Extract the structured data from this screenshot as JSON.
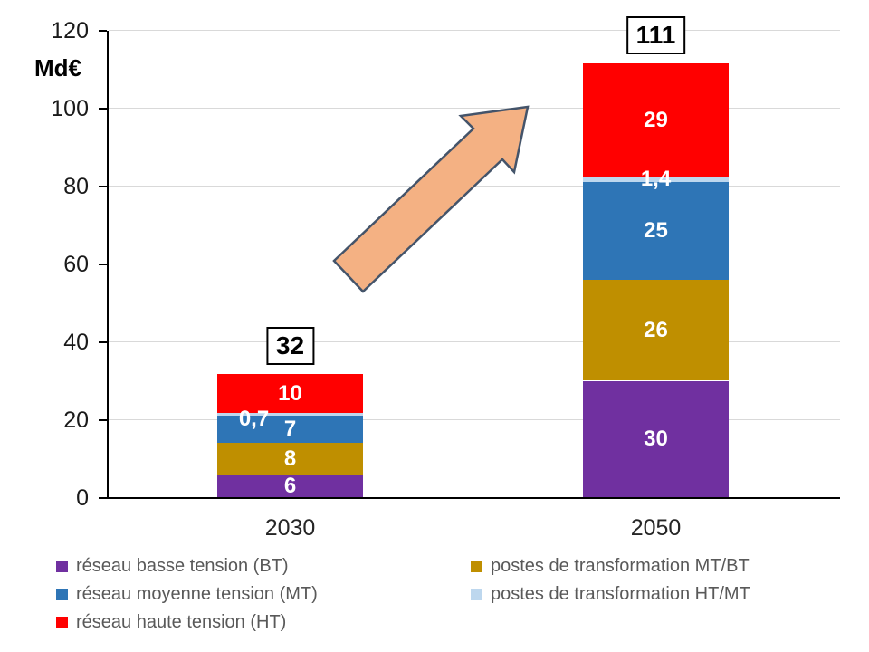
{
  "chart_data": {
    "type": "bar",
    "stacked": true,
    "unit_label": "Md€",
    "categories": [
      "2030",
      "2050"
    ],
    "series": [
      {
        "name": "réseau basse tension (BT)",
        "color": "#7030A0",
        "values": [
          6,
          30
        ],
        "labels": [
          "6",
          "30"
        ]
      },
      {
        "name": "postes de transformation MT/BT",
        "color": "#BF8F00",
        "values": [
          8,
          26
        ],
        "labels": [
          "8",
          "26"
        ]
      },
      {
        "name": "réseau moyenne tension (MT)",
        "color": "#2E75B6",
        "values": [
          7,
          25
        ],
        "labels": [
          "7",
          "25"
        ]
      },
      {
        "name": "postes de transformation HT/MT",
        "color": "#BDD7EE",
        "values": [
          0.7,
          1.4
        ],
        "labels": [
          "0,7",
          "1,4"
        ],
        "label_offsets": [
          {
            "dx": -40,
            "dy": 5
          },
          {
            "dx": 0,
            "dy": 0
          }
        ]
      },
      {
        "name": "réseau haute tension (HT)",
        "color": "#FF0000",
        "values": [
          10,
          29
        ],
        "labels": [
          "10",
          "29"
        ]
      }
    ],
    "totals": [
      "32",
      "111"
    ],
    "y_axis": {
      "min": 0,
      "max": 120,
      "step": 20,
      "tick_labels": [
        "0",
        "20",
        "40",
        "60",
        "80",
        "100",
        "120"
      ]
    },
    "grid": true,
    "legend_position": "bottom"
  },
  "legend": {
    "columns": [
      {
        "items": [
          {
            "label": "réseau basse tension (BT)",
            "color": "#7030A0"
          },
          {
            "label": "réseau moyenne tension (MT)",
            "color": "#2E75B6"
          },
          {
            "label": "réseau haute tension (HT)",
            "color": "#FF0000"
          }
        ]
      },
      {
        "items": [
          {
            "label": "postes de transformation MT/BT",
            "color": "#BF8F00"
          },
          {
            "label": "postes de transformation HT/MT",
            "color": "#BDD7EE"
          }
        ]
      }
    ]
  },
  "annotations": {
    "arrow": {
      "fill": "#F4B183",
      "stroke": "#44546A"
    }
  }
}
